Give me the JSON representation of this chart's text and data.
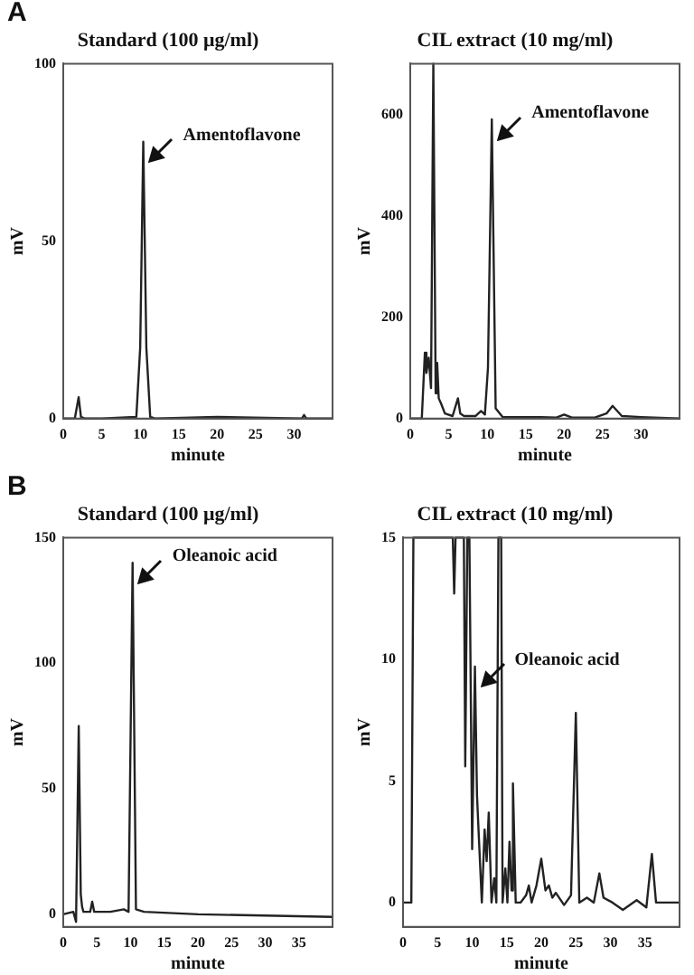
{
  "chart_data": [
    {
      "type": "line",
      "title": "Standard (100 μg/ml)",
      "xlabel": "minute",
      "ylabel": "mV",
      "xlim": [
        0,
        35
      ],
      "xticks": [
        0,
        5,
        10,
        15,
        20,
        25,
        30
      ],
      "ylim": [
        0,
        100
      ],
      "yticks": [
        0,
        50,
        100
      ],
      "grid": false,
      "legend": false,
      "marker": "none",
      "annotations": [
        "A",
        {
          "text": "Amentoflavone",
          "x": 10.4,
          "y": 78
        }
      ],
      "series": [
        {
          "color": "#222222",
          "x": [
            0,
            1.5,
            2,
            2.3,
            2.8,
            5,
            9.5,
            10,
            10.4,
            10.8,
            11.3,
            12,
            20,
            31,
            31.3,
            31.6,
            35
          ],
          "values": [
            0,
            0,
            6,
            0.5,
            0,
            0,
            0.5,
            20,
            78,
            20,
            0.5,
            0,
            0.5,
            0,
            1,
            0,
            0
          ]
        }
      ]
    },
    {
      "type": "line",
      "title": "CIL extract (10 mg/ml)",
      "xlabel": "minute",
      "ylabel": "mV",
      "xlim": [
        0,
        35
      ],
      "xticks": [
        0,
        5,
        10,
        15,
        20,
        25,
        30
      ],
      "ylim": [
        0,
        700
      ],
      "yticks": [
        0,
        200,
        400,
        600
      ],
      "grid": false,
      "legend": false,
      "marker": "none",
      "annotations": [
        {
          "text": "Amentoflavone",
          "x": 10.6,
          "y": 590
        }
      ],
      "series": [
        {
          "color": "#222222",
          "x": [
            0,
            1.5,
            1.9,
            2.1,
            2.4,
            2.7,
            3.0,
            3.3,
            3.5,
            3.7,
            4.0,
            4.5,
            5.5,
            6.2,
            6.5,
            7,
            8.5,
            9.2,
            9.7,
            10.1,
            10.6,
            11.1,
            12,
            17,
            19,
            20,
            21,
            24,
            25.5,
            26.3,
            27.5,
            30,
            35
          ],
          "values": [
            0,
            0,
            130,
            90,
            120,
            60,
            700,
            50,
            110,
            40,
            30,
            10,
            5,
            40,
            10,
            5,
            5,
            15,
            8,
            100,
            590,
            20,
            3,
            3,
            2,
            8,
            2,
            2,
            10,
            25,
            5,
            3,
            0
          ]
        }
      ]
    },
    {
      "type": "line",
      "title": "Standard (100 μg/ml)",
      "xlabel": "minute",
      "ylabel": "mV",
      "xlim": [
        0,
        40
      ],
      "xticks": [
        0,
        5,
        10,
        15,
        20,
        25,
        30,
        35
      ],
      "ylim": [
        -5,
        150
      ],
      "yticks": [
        0,
        50,
        100,
        150
      ],
      "grid": false,
      "legend": false,
      "marker": "none",
      "annotations": [
        "B",
        {
          "text": "Oleanoic acid",
          "x": 10.3,
          "y": 140
        }
      ],
      "series": [
        {
          "color": "#222222",
          "x": [
            0,
            1.5,
            1.9,
            2.3,
            2.6,
            2.8,
            3,
            4,
            4.3,
            4.6,
            7,
            9,
            9.7,
            10.3,
            10.8,
            12,
            20,
            40
          ],
          "values": [
            0,
            1,
            -3,
            75,
            8,
            3,
            1,
            1,
            5,
            1,
            1,
            2,
            1,
            140,
            2,
            1,
            0,
            -1
          ]
        }
      ]
    },
    {
      "type": "line",
      "title": "CIL extract (10 mg/ml)",
      "xlabel": "minute",
      "ylabel": "mV",
      "xlim": [
        0,
        40
      ],
      "xticks": [
        0,
        5,
        10,
        15,
        20,
        25,
        30,
        35
      ],
      "ylim": [
        -1,
        15
      ],
      "yticks": [
        0,
        5,
        10,
        15
      ],
      "grid": false,
      "legend": false,
      "marker": "none",
      "annotations": [
        {
          "text": "Oleanoic acid",
          "x": 10.4,
          "y": 9.7
        }
      ],
      "series": [
        {
          "color": "#222222",
          "x": [
            0,
            1.2,
            1.5,
            7.2,
            7.4,
            7.6,
            8.8,
            9.0,
            9.3,
            9.6,
            10.0,
            10.4,
            10.7,
            11.0,
            11.4,
            11.8,
            12.1,
            12.4,
            12.8,
            13.2,
            13.5,
            13.8,
            14.2,
            14.4,
            14.8,
            15.1,
            15.4,
            15.7,
            15.9,
            16.3,
            17,
            17.8,
            18.2,
            18.6,
            19.3,
            20.0,
            20.6,
            21.1,
            21.6,
            22.1,
            23.3,
            24.3,
            25.0,
            25.5,
            26.6,
            27.6,
            28.4,
            29.0,
            30.3,
            31.8,
            33.8,
            35.2,
            36.0,
            36.6,
            40
          ],
          "values": [
            0,
            0,
            15,
            15,
            12.7,
            15,
            15,
            5.6,
            15,
            15,
            2.2,
            9.7,
            4.4,
            2.5,
            0,
            3,
            1.7,
            3.7,
            0,
            1,
            0,
            15,
            15,
            0,
            1.4,
            0,
            2.5,
            0.5,
            4.9,
            0,
            0,
            0.3,
            0.7,
            0,
            0.7,
            1.8,
            0.5,
            0.7,
            0.2,
            0.4,
            -0.1,
            0.3,
            7.8,
            0,
            0.2,
            0,
            1.2,
            0.2,
            0,
            -0.3,
            0.1,
            -0.2,
            2,
            0,
            0
          ]
        }
      ]
    }
  ]
}
